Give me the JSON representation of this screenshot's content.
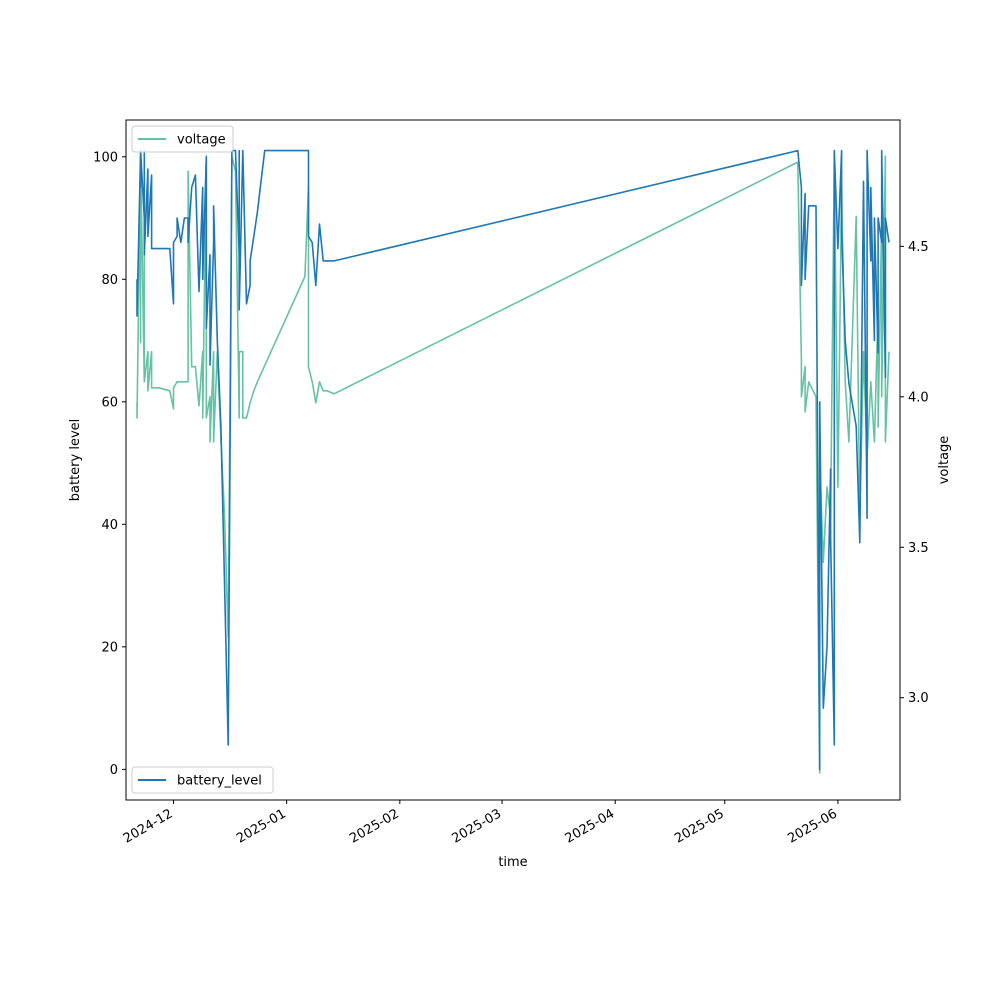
{
  "chart_data": {
    "type": "line",
    "title": "",
    "xlabel": "time",
    "ylabel": "battery level",
    "y2label": "voltage",
    "xlim": [
      "2024-11-18",
      "2025-06-18"
    ],
    "ylim": [
      -5,
      106
    ],
    "y2lim": [
      2.66,
      4.92
    ],
    "x_ticks": [
      "2024-12",
      "2025-01",
      "2025-02",
      "2025-03",
      "2025-04",
      "2025-05",
      "2025-06"
    ],
    "y_ticks": [
      0,
      20,
      40,
      60,
      80,
      100
    ],
    "y2_ticks": [
      3.0,
      3.5,
      4.0,
      4.5
    ],
    "y2_tick_labels": [
      "3.0",
      "3.5",
      "4.0",
      "4.5"
    ],
    "grid": false,
    "series": [
      {
        "name": "battery_level",
        "axis": "left",
        "color": "#1f77b4",
        "legend": "bottom-left",
        "x": [
          "2024-11-21",
          "2024-11-21",
          "2024-11-22",
          "2024-11-22",
          "2024-11-22",
          "2024-11-23",
          "2024-11-23",
          "2024-11-23",
          "2024-11-24",
          "2024-11-24",
          "2024-11-25",
          "2024-11-25",
          "2024-11-26",
          "2024-11-26",
          "2024-11-27",
          "2024-11-30",
          "2024-12-01",
          "2024-12-01",
          "2024-12-02",
          "2024-12-02",
          "2024-12-03",
          "2024-12-04",
          "2024-12-05",
          "2024-12-05",
          "2024-12-06",
          "2024-12-07",
          "2024-12-08",
          "2024-12-09",
          "2024-12-09",
          "2024-12-10",
          "2024-12-10",
          "2024-12-11",
          "2024-12-11",
          "2024-12-12",
          "2024-12-12",
          "2024-12-13",
          "2024-12-14",
          "2024-12-15",
          "2024-12-16",
          "2024-12-17",
          "2024-12-18",
          "2024-12-19",
          "2024-12-19",
          "2024-12-19",
          "2024-12-20",
          "2024-12-21",
          "2024-12-22",
          "2024-12-22",
          "2024-12-23",
          "2024-12-24",
          "2024-12-26",
          "2025-01-06",
          "2025-01-07",
          "2025-01-07",
          "2025-01-08",
          "2025-01-09",
          "2025-01-10",
          "2025-01-11",
          "2025-01-12",
          "2025-01-14",
          "2025-05-21",
          "2025-05-22",
          "2025-05-22",
          "2025-05-23",
          "2025-05-23",
          "2025-05-24",
          "2025-05-26",
          "2025-05-27",
          "2025-05-27",
          "2025-05-28",
          "2025-05-29",
          "2025-05-30",
          "2025-05-30",
          "2025-05-31",
          "2025-05-31",
          "2025-06-01",
          "2025-06-02",
          "2025-06-02",
          "2025-06-03",
          "2025-06-04",
          "2025-06-06",
          "2025-06-07",
          "2025-06-08",
          "2025-06-09",
          "2025-06-09",
          "2025-06-10",
          "2025-06-10",
          "2025-06-11",
          "2025-06-11",
          "2025-06-12",
          "2025-06-12",
          "2025-06-13",
          "2025-06-13",
          "2025-06-14",
          "2025-06-14",
          "2025-06-15"
        ],
        "values": [
          80,
          74,
          101,
          95,
          101,
          90,
          101,
          84,
          98,
          87,
          97,
          85,
          85,
          85,
          85,
          85,
          76,
          86,
          87,
          90,
          86,
          90,
          90,
          86,
          95,
          97,
          78,
          95,
          80,
          100,
          72,
          84,
          66,
          86,
          92,
          70,
          56,
          30,
          4,
          101,
          101,
          84,
          101,
          75,
          101,
          76,
          79,
          83,
          87,
          91,
          101,
          101,
          101,
          87,
          86,
          79,
          89,
          83,
          83,
          83,
          101,
          95,
          79,
          94,
          80,
          92,
          92,
          0,
          60,
          10,
          20,
          49,
          38,
          4,
          101,
          85,
          101,
          88,
          70,
          63,
          56,
          37,
          96,
          41,
          101,
          83,
          95,
          70,
          90,
          68,
          90,
          86,
          101,
          64,
          90,
          86
        ]
      },
      {
        "name": "voltage",
        "axis": "right",
        "color": "#66c2a5",
        "legend": "top-left",
        "x": [
          "2024-11-21",
          "2024-11-21",
          "2024-11-22",
          "2024-11-22",
          "2024-11-22",
          "2024-11-23",
          "2024-11-23",
          "2024-11-23",
          "2024-11-24",
          "2024-11-24",
          "2024-11-25",
          "2024-11-25",
          "2024-11-26",
          "2024-11-27",
          "2024-11-30",
          "2024-12-01",
          "2024-12-01",
          "2024-12-02",
          "2024-12-03",
          "2024-12-04",
          "2024-12-05",
          "2024-12-05",
          "2024-12-06",
          "2024-12-07",
          "2024-12-08",
          "2024-12-09",
          "2024-12-09",
          "2024-12-10",
          "2024-12-10",
          "2024-12-11",
          "2024-12-11",
          "2024-12-12",
          "2024-12-12",
          "2024-12-13",
          "2024-12-14",
          "2024-12-15",
          "2024-12-16",
          "2024-12-17",
          "2024-12-18",
          "2024-12-19",
          "2024-12-19",
          "2024-12-20",
          "2024-12-20",
          "2024-12-21",
          "2024-12-22",
          "2024-12-23",
          "2024-12-24",
          "2025-01-06",
          "2025-01-07",
          "2025-01-07",
          "2025-01-08",
          "2025-01-09",
          "2025-01-10",
          "2025-01-11",
          "2025-01-12",
          "2025-01-14",
          "2025-05-21",
          "2025-05-22",
          "2025-05-22",
          "2025-05-23",
          "2025-05-23",
          "2025-05-24",
          "2025-05-26",
          "2025-05-27",
          "2025-05-27",
          "2025-05-28",
          "2025-05-29",
          "2025-05-30",
          "2025-05-31",
          "2025-06-01",
          "2025-06-02",
          "2025-06-03",
          "2025-06-04",
          "2025-06-06",
          "2025-06-07",
          "2025-06-08",
          "2025-06-09",
          "2025-06-10",
          "2025-06-11",
          "2025-06-12",
          "2025-06-12",
          "2025-06-13",
          "2025-06-13",
          "2025-06-14",
          "2025-06-14",
          "2025-06-15"
        ],
        "values": [
          3.98,
          3.93,
          4.8,
          4.18,
          4.8,
          4.05,
          4.8,
          4.05,
          4.15,
          4.02,
          4.15,
          4.03,
          4.03,
          4.03,
          4.02,
          3.96,
          4.03,
          4.05,
          4.05,
          4.05,
          4.05,
          4.75,
          4.1,
          4.1,
          3.97,
          4.15,
          3.93,
          4.8,
          3.93,
          4.0,
          3.85,
          4.15,
          3.85,
          4.15,
          3.86,
          3.6,
          3.2,
          4.8,
          4.75,
          3.93,
          4.15,
          4.15,
          3.93,
          3.93,
          3.98,
          4.02,
          4.05,
          4.4,
          4.7,
          4.1,
          4.05,
          3.98,
          4.05,
          4.02,
          4.02,
          4.01,
          4.78,
          4.12,
          4.0,
          4.1,
          3.95,
          4.05,
          4.0,
          2.75,
          3.8,
          3.45,
          3.7,
          3.6,
          4.8,
          3.7,
          4.7,
          4.05,
          3.85,
          4.6,
          3.6,
          4.15,
          3.8,
          4.05,
          3.85,
          4.3,
          3.9,
          4.6,
          4.0,
          4.8,
          3.85,
          4.15
        ]
      }
    ]
  }
}
